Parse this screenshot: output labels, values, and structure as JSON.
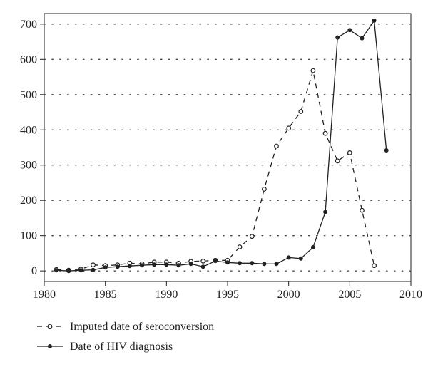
{
  "chart_data": {
    "type": "line",
    "xlim": [
      1980,
      2010
    ],
    "ylim": [
      -30,
      730
    ],
    "x_ticks": [
      1980,
      1985,
      1990,
      1995,
      2000,
      2005,
      2010
    ],
    "y_ticks": [
      0,
      100,
      200,
      300,
      400,
      500,
      600,
      700
    ],
    "grid": "horizontal dotted",
    "legend_position": "bottom-left",
    "series": [
      {
        "name": "Imputed date of seroconversion",
        "style": "dashed",
        "marker": "open-circle",
        "color": "#222222",
        "x": [
          1981,
          1982,
          1983,
          1984,
          1985,
          1986,
          1987,
          1988,
          1989,
          1990,
          1991,
          1992,
          1993,
          1994,
          1995,
          1996,
          1997,
          1998,
          1999,
          2000,
          2001,
          2002,
          2003,
          2004,
          2005,
          2006,
          2007
        ],
        "y": [
          4,
          2,
          5,
          17,
          15,
          17,
          22,
          20,
          25,
          25,
          22,
          27,
          28,
          30,
          30,
          68,
          98,
          232,
          354,
          405,
          452,
          568,
          390,
          312,
          335,
          172,
          15
        ]
      },
      {
        "name": "Date of HIV diagnosis",
        "style": "solid",
        "marker": "filled-circle",
        "color": "#222222",
        "x": [
          1981,
          1982,
          1983,
          1984,
          1985,
          1986,
          1987,
          1988,
          1989,
          1990,
          1991,
          1992,
          1993,
          1994,
          1995,
          1996,
          1997,
          1998,
          1999,
          2000,
          2001,
          2002,
          2003,
          2004,
          2005,
          2006,
          2007,
          2008
        ],
        "y": [
          2,
          0,
          2,
          3,
          10,
          12,
          14,
          16,
          18,
          18,
          16,
          20,
          12,
          28,
          24,
          22,
          22,
          20,
          20,
          38,
          35,
          67,
          167,
          662,
          683,
          660,
          710,
          342
        ]
      }
    ]
  }
}
